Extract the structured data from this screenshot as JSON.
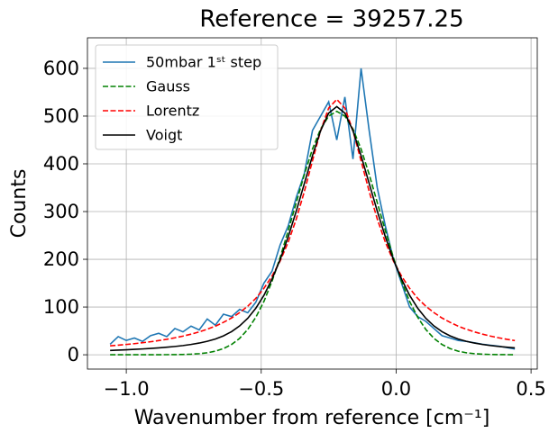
{
  "chart_data": {
    "type": "line",
    "title": "Reference = 39257.25",
    "xlabel": "Wavenumber from reference [cm⁻¹]",
    "ylabel": "Counts",
    "x": [
      -1.06,
      -1.03,
      -1.0,
      -0.97,
      -0.94,
      -0.91,
      -0.88,
      -0.85,
      -0.82,
      -0.79,
      -0.76,
      -0.73,
      -0.7,
      -0.67,
      -0.64,
      -0.61,
      -0.58,
      -0.55,
      -0.52,
      -0.49,
      -0.46,
      -0.43,
      -0.4,
      -0.37,
      -0.34,
      -0.31,
      -0.28,
      -0.25,
      -0.22,
      -0.19,
      -0.16,
      -0.13,
      -0.1,
      -0.07,
      -0.04,
      -0.01,
      0.02,
      0.05,
      0.08,
      0.11,
      0.14,
      0.17,
      0.2,
      0.23,
      0.26,
      0.29,
      0.32,
      0.35,
      0.38,
      0.41,
      0.44
    ],
    "series": [
      {
        "name": "50mbar 1ˢᵗ step",
        "color": "#1f77b4",
        "linestyle": "solid",
        "values": [
          22,
          38,
          30,
          35,
          28,
          40,
          45,
          38,
          55,
          48,
          60,
          52,
          75,
          62,
          85,
          80,
          95,
          88,
          110,
          150,
          175,
          230,
          270,
          330,
          380,
          470,
          500,
          530,
          450,
          540,
          410,
          600,
          470,
          350,
          270,
          200,
          150,
          100,
          80,
          70,
          55,
          40,
          35,
          30,
          28,
          25,
          22,
          20,
          18,
          15,
          12
        ]
      },
      {
        "name": "Gauss",
        "color": "#008000",
        "linestyle": "dashed",
        "values": [
          0,
          0,
          0,
          0,
          0,
          0,
          0.1,
          0.2,
          0.3,
          0.6,
          1.2,
          2.3,
          4.2,
          7.5,
          13,
          21.5,
          34.4,
          53,
          78.5,
          111.7,
          154,
          203.5,
          260,
          319,
          378,
          431,
          473,
          500,
          510,
          500,
          473,
          431,
          378,
          319,
          260,
          203.5,
          154,
          111.7,
          78.5,
          53,
          34.4,
          21.5,
          13,
          7.5,
          4.2,
          2.3,
          1.2,
          0.6,
          0.3,
          0.2,
          0.1
        ]
      },
      {
        "name": "Lorentz",
        "color": "#ff0000",
        "linestyle": "dashed",
        "values": [
          18.7,
          20.1,
          21.6,
          23.3,
          25.2,
          27.3,
          29.7,
          32.4,
          35.5,
          39.1,
          43.2,
          47.9,
          53.5,
          59.9,
          67.9,
          77,
          88.3,
          101.7,
          118.2,
          139.1,
          164.8,
          196.3,
          235.9,
          284.6,
          342.4,
          406.6,
          469.2,
          516.8,
          535,
          516.8,
          469.2,
          406.6,
          342.4,
          284.6,
          235.9,
          196.3,
          164.8,
          139.1,
          118.2,
          101.7,
          88.3,
          77,
          67.9,
          59.9,
          53.5,
          47.9,
          43.2,
          39.1,
          35.5,
          32.4,
          29.7
        ]
      },
      {
        "name": "Voigt",
        "color": "#000000",
        "linestyle": "solid",
        "values": [
          9.1,
          9.8,
          10.5,
          11.3,
          12.2,
          13.3,
          14.5,
          15.8,
          17.4,
          19.3,
          21.6,
          24.5,
          28.2,
          33,
          39.6,
          48.4,
          60.4,
          76.4,
          97.5,
          124.5,
          158.6,
          199.2,
          247.3,
          301.1,
          359.1,
          417.3,
          469.3,
          506.2,
          520,
          506.2,
          469.3,
          417.3,
          359.1,
          301.1,
          247.3,
          199.2,
          158.6,
          124.5,
          97.5,
          76.4,
          60.4,
          48.4,
          39.6,
          33,
          28.2,
          24.5,
          21.6,
          19.3,
          17.4,
          15.8,
          14.5
        ]
      }
    ],
    "xlim": [
      -1.144,
      0.523
    ],
    "ylim": [
      -30,
      664
    ],
    "xticks": [
      {
        "value": -1.0,
        "label": "−1.0"
      },
      {
        "value": -0.5,
        "label": "−0.5"
      },
      {
        "value": 0,
        "label": "0.0"
      },
      0.5
    ],
    "yticks": [
      0,
      100,
      200,
      300,
      400,
      500,
      600
    ],
    "grid": true,
    "legend": "upper left"
  }
}
